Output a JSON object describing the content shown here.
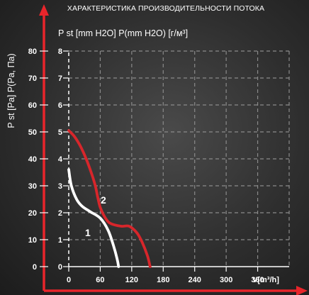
{
  "chart_data": {
    "type": "line",
    "title": "ХАРАКТЕРИСТИКА ПРОИЗВОДИТЕЛЬНОСТИ ПОТОКА",
    "ylabel_inner": "P st [mm H2O] P(mm H2O) [г/м³]",
    "ylabel_outer": "P st [Pa] P(Pa, Па)",
    "xlabel": "V[m³/h]",
    "x_ticks": [
      "0",
      "60",
      "120",
      "180",
      "240",
      "300",
      "360"
    ],
    "y_ticks_pa": [
      "0",
      "10",
      "20",
      "30",
      "40",
      "50",
      "60",
      "70",
      "80"
    ],
    "y_ticks_mm": [
      "0",
      "1",
      "2",
      "3",
      "4",
      "5",
      "6",
      "7",
      "8"
    ],
    "xlim": [
      0,
      420
    ],
    "ylim": [
      0,
      8
    ],
    "grid": true,
    "series": [
      {
        "name": "1",
        "color": "#ffffff",
        "x": [
          0,
          5,
          15,
          25,
          40,
          60,
          75,
          85,
          92,
          95
        ],
        "y": [
          3.6,
          3.0,
          2.5,
          2.25,
          2.05,
          1.8,
          1.35,
          0.8,
          0.3,
          0.0
        ]
      },
      {
        "name": "2",
        "color": "#d7262b",
        "x": [
          0,
          10,
          20,
          30,
          40,
          50,
          55,
          60,
          70,
          80,
          100,
          115,
          130,
          140,
          150,
          155
        ],
        "y": [
          5.05,
          4.85,
          4.55,
          4.15,
          3.65,
          3.05,
          2.6,
          2.2,
          1.8,
          1.6,
          1.5,
          1.5,
          1.25,
          0.9,
          0.4,
          0.0
        ]
      }
    ]
  }
}
